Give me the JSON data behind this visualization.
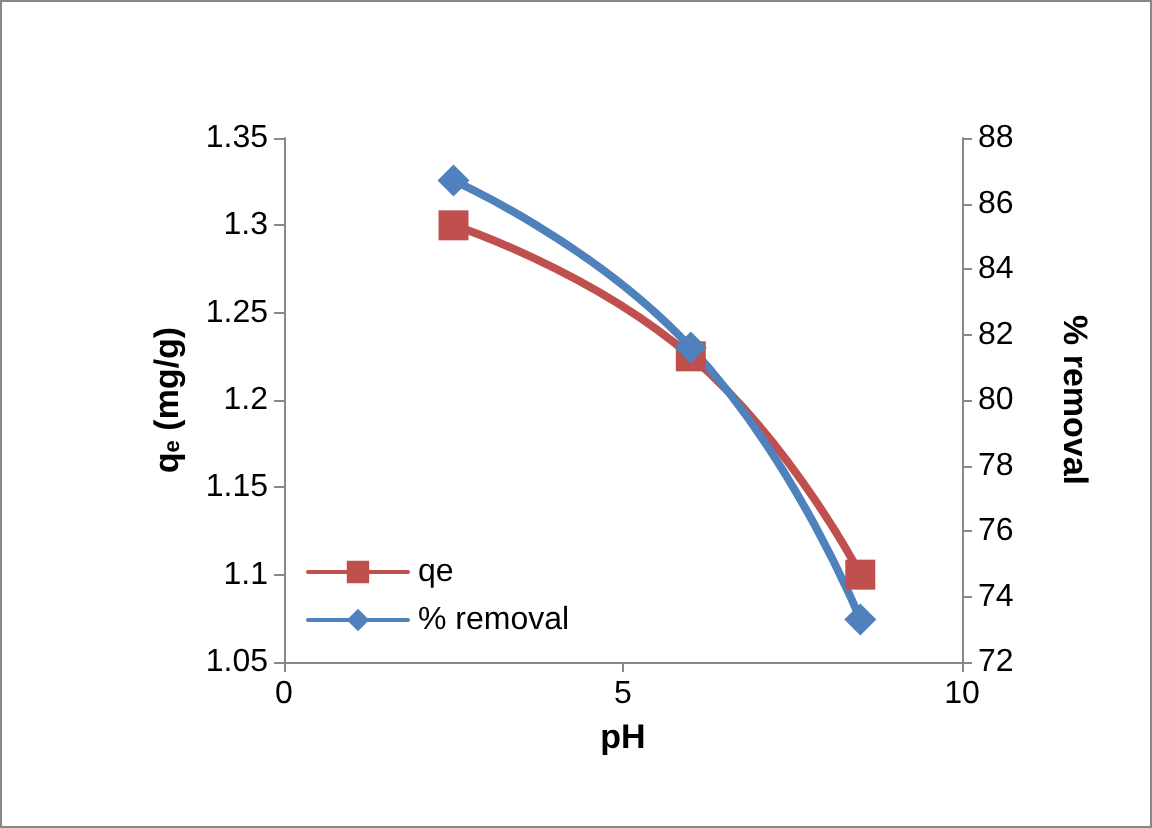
{
  "chart_data": {
    "type": "line",
    "xlabel": "pH",
    "ylabel": "q$_{e}$ (mg/g)",
    "y2label": "% removal",
    "x": [
      2.5,
      6,
      8.5
    ],
    "series": [
      {
        "name": "qe",
        "color": "#c0504d",
        "marker": "square",
        "values": [
          1.3,
          1.225,
          1.1
        ]
      },
      {
        "name": "% removal",
        "color": "#4f81bd",
        "marker": "diamond",
        "axis": "y2",
        "values": [
          86.7,
          81.6,
          73.3
        ]
      }
    ],
    "xlim": [
      0,
      10
    ],
    "xticks": [
      0,
      5,
      10
    ],
    "ylim": [
      1.05,
      1.35
    ],
    "yticks": [
      1.05,
      1.1,
      1.15,
      1.2,
      1.25,
      1.3,
      1.35
    ],
    "y2lim": [
      72,
      88
    ],
    "y2ticks": [
      72,
      74,
      76,
      78,
      80,
      82,
      84,
      86,
      88
    ],
    "grid": false,
    "legend": "bottom left",
    "line_style": "solid"
  }
}
